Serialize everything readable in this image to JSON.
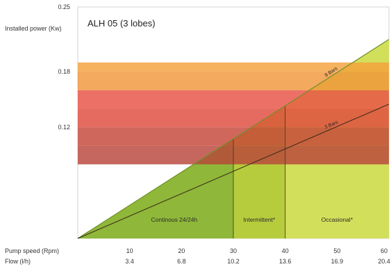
{
  "chart_data": {
    "type": "line",
    "title": "ALH 05 (3 lobes)",
    "ylabel": "Installed power (Kw)",
    "xlabel_primary": "Pump speed (Rpm)",
    "xlabel_secondary": "Flow (l/h)",
    "ylim": [
      0,
      0.25
    ],
    "xlim": [
      0,
      60
    ],
    "y_tick_labels": [
      {
        "value": 0.25,
        "label": "0.25"
      },
      {
        "value": 0.18,
        "label": "0.18"
      },
      {
        "value": 0.12,
        "label": "0.12"
      }
    ],
    "x_ticks": [
      {
        "x": 10,
        "speed": "10",
        "flow": "3.4"
      },
      {
        "x": 20,
        "speed": "20",
        "flow": "6.8"
      },
      {
        "x": 30,
        "speed": "30",
        "flow": "10.2"
      },
      {
        "x": 40,
        "speed": "40",
        "flow": "13.6"
      },
      {
        "x": 50,
        "speed": "50",
        "flow": "16.9"
      },
      {
        "x": 60,
        "speed": "60",
        "flow": "20.4"
      }
    ],
    "series": [
      {
        "name": "8 Bars",
        "x": [
          0,
          60
        ],
        "y": [
          0,
          0.215
        ]
      },
      {
        "name": "3 Bars",
        "x": [
          0,
          60
        ],
        "y": [
          0,
          0.145
        ]
      }
    ],
    "power_bands": [
      {
        "y0": 0.18,
        "y1": 0.19,
        "color": "#f4a13c"
      },
      {
        "y0": 0.16,
        "y1": 0.18,
        "color": "#f0963a"
      },
      {
        "y0": 0.14,
        "y1": 0.16,
        "color": "#e95045"
      },
      {
        "y0": 0.12,
        "y1": 0.14,
        "color": "#df4a3e"
      },
      {
        "y0": 0.1,
        "y1": 0.12,
        "color": "#c64538"
      },
      {
        "y0": 0.08,
        "y1": 0.1,
        "color": "#b8453a"
      }
    ],
    "zones": [
      {
        "label": "Continous 24/24h",
        "x0": 0,
        "x1": 30,
        "color": "#8fb739"
      },
      {
        "label": "Intermittent*",
        "x0": 30,
        "x1": 40,
        "color": "#b6cc3d"
      },
      {
        "label": "Occasional*",
        "x0": 40,
        "x1": 60,
        "color": "#d2df5a"
      }
    ],
    "colors": {
      "triangle_edge": "#6f8f2a",
      "line": "#3a2a1a",
      "divider": "#4a3a20",
      "frame": "#c8c8c8"
    }
  }
}
